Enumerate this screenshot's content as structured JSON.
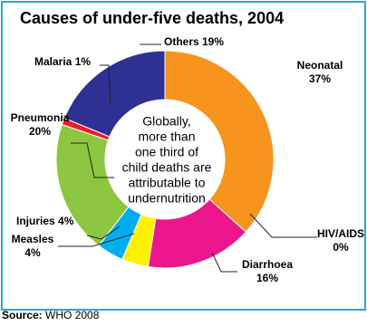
{
  "chart_data": {
    "type": "pie",
    "title": "Causes of under-five deaths, 2004",
    "center_text": [
      "Globally,",
      "more than",
      "one third of",
      "child deaths are",
      "attributable to",
      "undernutrition"
    ],
    "slices": [
      {
        "name": "Neonatal",
        "value": 37,
        "label_lines": [
          "Neonatal",
          "37%"
        ],
        "color": "#f7941d"
      },
      {
        "name": "HIV/AIDS",
        "value": 0,
        "label_lines": [
          "HIV/AIDS",
          "0%"
        ],
        "color": "#ffffff"
      },
      {
        "name": "Diarrhoea",
        "value": 16,
        "label_lines": [
          "Diarrhoea",
          "16%"
        ],
        "color": "#ec168c"
      },
      {
        "name": "Measles",
        "value": 4,
        "label_lines": [
          "Measles",
          "4%"
        ],
        "color": "#fff200"
      },
      {
        "name": "Injuries",
        "value": 4,
        "label_lines": [
          "Injuries 4%"
        ],
        "color": "#00aeef"
      },
      {
        "name": "Pneumonia",
        "value": 20,
        "label_lines": [
          "Pneumonia",
          "20%"
        ],
        "color": "#8dc63f"
      },
      {
        "name": "Malaria",
        "value": 1,
        "label_lines": [
          "Malaria 1%"
        ],
        "color": "#ed1c24"
      },
      {
        "name": "Others",
        "value": 19,
        "label_lines": [
          "Others 19%"
        ],
        "color": "#2e3192"
      }
    ]
  },
  "source": {
    "label": "Source:",
    "text": "WHO 2008"
  }
}
